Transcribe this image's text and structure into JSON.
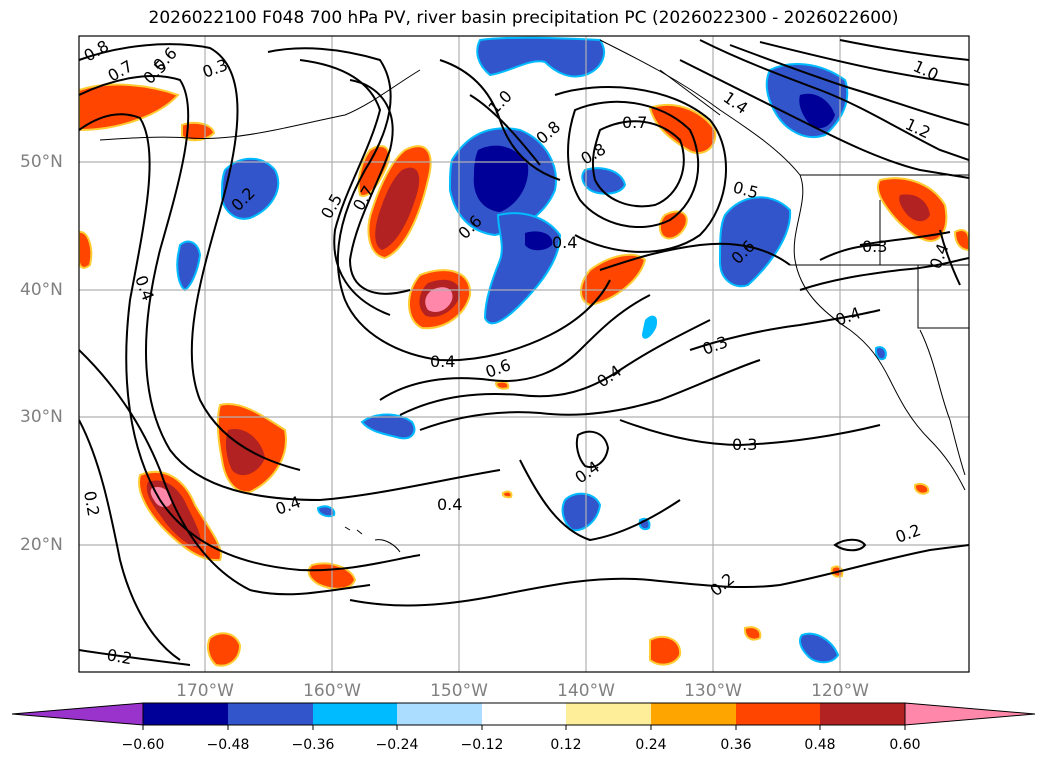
{
  "title": "2026022100 F048 700 hPa PV, river basin precipitation PC (2026022300 - 2026022600)",
  "lat_labels": [
    "50°N",
    "40°N",
    "30°N",
    "20°N"
  ],
  "lon_labels": [
    "170°W",
    "160°W",
    "150°W",
    "140°W",
    "130°W",
    "120°W"
  ],
  "colorbar": {
    "levels": [
      "−0.60",
      "−0.48",
      "−0.36",
      "−0.24",
      "−0.12",
      "0.12",
      "0.24",
      "0.36",
      "0.48",
      "0.60"
    ],
    "colors": [
      "#9933cc",
      "#000099",
      "#3355cc",
      "#00bbff",
      "#aaddff",
      "#ffffff",
      "#ffee99",
      "#ffa500",
      "#ff4500",
      "#b22222",
      "#ff88aa"
    ]
  },
  "contour_labels": [
    {
      "text": "0.8"
    },
    {
      "text": "0.7"
    },
    {
      "text": "0.6"
    },
    {
      "text": "0.5"
    },
    {
      "text": "0.3"
    },
    {
      "text": "0.2"
    },
    {
      "text": "0.4"
    },
    {
      "text": "0.5"
    },
    {
      "text": "0.7"
    },
    {
      "text": "1.0"
    },
    {
      "text": "0.8"
    },
    {
      "text": "0.7"
    },
    {
      "text": "0.8"
    },
    {
      "text": "0.4"
    },
    {
      "text": "0.6"
    },
    {
      "text": "0.4"
    },
    {
      "text": "0.6"
    },
    {
      "text": "0.4"
    },
    {
      "text": "0.3"
    },
    {
      "text": "0.3"
    },
    {
      "text": "0.4"
    },
    {
      "text": "0.4"
    },
    {
      "text": "0.4"
    },
    {
      "text": "0.2"
    },
    {
      "text": "0.2"
    },
    {
      "text": "0.2"
    },
    {
      "text": "0.2"
    },
    {
      "text": "1.4"
    },
    {
      "text": "1.0"
    },
    {
      "text": "1.2"
    },
    {
      "text": "0.5"
    },
    {
      "text": "0.3"
    },
    {
      "text": "0.4"
    },
    {
      "text": "0.4"
    },
    {
      "text": "0.6"
    }
  ]
}
